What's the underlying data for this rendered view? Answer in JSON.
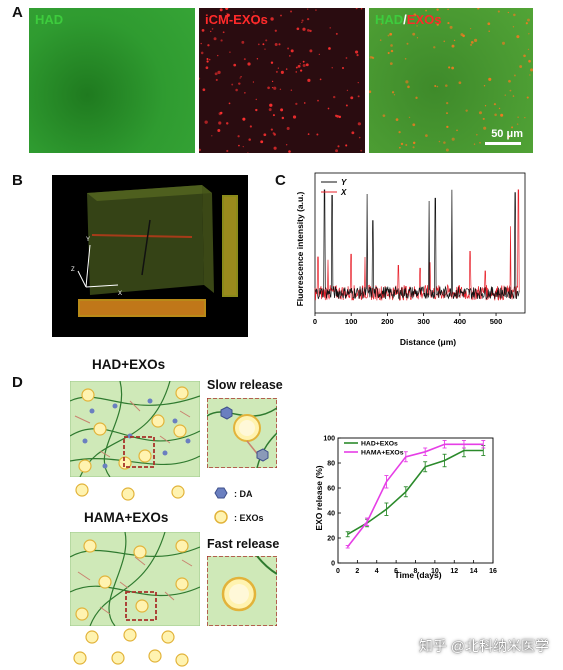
{
  "panels": {
    "a": {
      "letter": "A",
      "images": [
        {
          "label_parts": [
            {
              "text": "HAD",
              "color": "#3dcc3d"
            }
          ]
        },
        {
          "label_parts": [
            {
              "text": "iCM-EXOs",
              "color": "#ff2a2a"
            }
          ]
        },
        {
          "label_parts": [
            {
              "text": "HAD",
              "color": "#3dcc3d"
            },
            {
              "text": "/",
              "color": "#ffffff"
            },
            {
              "text": "EXOs",
              "color": "#ff2a2a"
            }
          ]
        }
      ],
      "scale_bar": "50 μm"
    },
    "b": {
      "letter": "B",
      "axis_labels": {
        "x": "X",
        "y": "Y",
        "z": "Z"
      }
    },
    "c": {
      "letter": "C"
    },
    "d": {
      "letter": "D",
      "top_title": "HAD+EXOs",
      "bottom_title": "HAMA+EXOs",
      "slow_label": "Slow release",
      "fast_label": "Fast release",
      "legend": [
        {
          "icon": "hexagon-icon",
          "text": ": DA"
        },
        {
          "icon": "circle-icon",
          "text": ": EXOs"
        }
      ]
    }
  },
  "chart_data": [
    {
      "type": "line",
      "panel": "C",
      "title": "",
      "xlabel": "Distance (μm)",
      "ylabel": "Fluorescence intensity (a.u.)",
      "xlim": [
        0,
        580
      ],
      "xticks": [
        0,
        100,
        200,
        300,
        400,
        500
      ],
      "legend_position": "top-left",
      "series": [
        {
          "name": "Y",
          "color": "#111111",
          "spikes": [
            [
              26,
              0.88
            ],
            [
              47,
              0.84
            ],
            [
              144,
              0.85
            ],
            [
              160,
              0.66
            ],
            [
              315,
              0.8
            ],
            [
              332,
              0.82
            ],
            [
              378,
              0.88
            ],
            [
              553,
              0.86
            ]
          ]
        },
        {
          "name": "X",
          "color": "#e8202a",
          "spikes": [
            [
              8,
              0.4
            ],
            [
              36,
              0.38
            ],
            [
              100,
              0.42
            ],
            [
              138,
              0.4
            ],
            [
              230,
              0.34
            ],
            [
              290,
              0.32
            ],
            [
              317,
              0.36
            ],
            [
              428,
              0.44
            ],
            [
              470,
              0.3
            ],
            [
              540,
              0.62
            ],
            [
              562,
              0.88
            ]
          ]
        }
      ]
    },
    {
      "type": "line",
      "panel": "D",
      "title": "",
      "xlabel": "Time (days)",
      "ylabel": "EXO release (%)",
      "xlim": [
        0,
        16
      ],
      "ylim": [
        0,
        100
      ],
      "xticks": [
        0,
        2,
        4,
        6,
        8,
        10,
        12,
        14,
        16
      ],
      "yticks": [
        0,
        20,
        40,
        60,
        80,
        100
      ],
      "legend_position": "top-left",
      "series": [
        {
          "name": "HAD+EXOs",
          "color": "#2b8a2b",
          "x": [
            1,
            3,
            5,
            7,
            9,
            11,
            13,
            15
          ],
          "y": [
            23,
            32,
            43,
            57,
            77,
            82,
            90,
            90
          ],
          "err": [
            2,
            3,
            5,
            4,
            4,
            5,
            5,
            4
          ]
        },
        {
          "name": "HAMA+EXOs",
          "color": "#e63ee6",
          "x": [
            1,
            3,
            5,
            7,
            9,
            11,
            13,
            15
          ],
          "y": [
            13,
            33,
            65,
            85,
            89,
            95,
            95,
            95
          ],
          "err": [
            1,
            3,
            5,
            4,
            3,
            3,
            3,
            3
          ]
        }
      ]
    }
  ],
  "watermark": "知乎 @北科纳米医学"
}
